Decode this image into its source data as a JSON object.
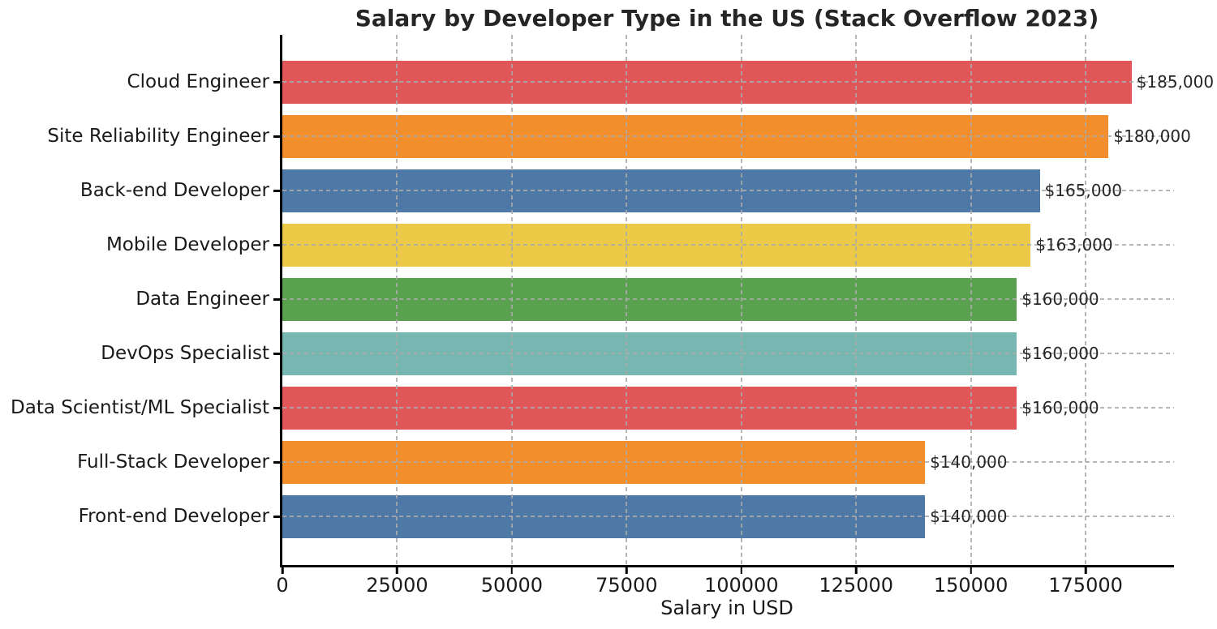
{
  "figure": {
    "background_color": "#ffffff",
    "axis_color": "#000000",
    "grid_color": "#aaaaaa",
    "text_color": "#1a1a1a"
  },
  "chart_data": {
    "type": "bar",
    "orientation": "horizontal",
    "title": "Salary by Developer Type in the US (Stack Overflow 2023)",
    "xlabel": "Salary in USD",
    "ylabel": "",
    "categories": [
      "Cloud Engineer",
      "Site Reliability Engineer",
      "Back-end Developer",
      "Mobile Developer",
      "Data Engineer",
      "DevOps Specialist",
      "Data Scientist/ML Specialist",
      "Full-Stack Developer",
      "Front-end Developer"
    ],
    "values": [
      185000,
      180000,
      165000,
      163000,
      160000,
      160000,
      160000,
      140000,
      140000
    ],
    "value_labels": [
      "$185,000",
      "$180,000",
      "$165,000",
      "$163,000",
      "$160,000",
      "$160,000",
      "$160,000",
      "$140,000",
      "$140,000"
    ],
    "bar_colors": [
      "#e15759",
      "#f28e2b",
      "#4e79a7",
      "#edc948",
      "#59a14f",
      "#76b7b2",
      "#e15759",
      "#f28e2b",
      "#4e79a7"
    ],
    "xlim": [
      0,
      194250
    ],
    "xticks": [
      0,
      25000,
      50000,
      75000,
      100000,
      125000,
      150000,
      175000
    ],
    "xtick_labels": [
      "0",
      "25000",
      "50000",
      "75000",
      "100000",
      "125000",
      "150000",
      "175000"
    ],
    "grid": {
      "axis": "both",
      "style": "dashed"
    },
    "legend": null
  }
}
